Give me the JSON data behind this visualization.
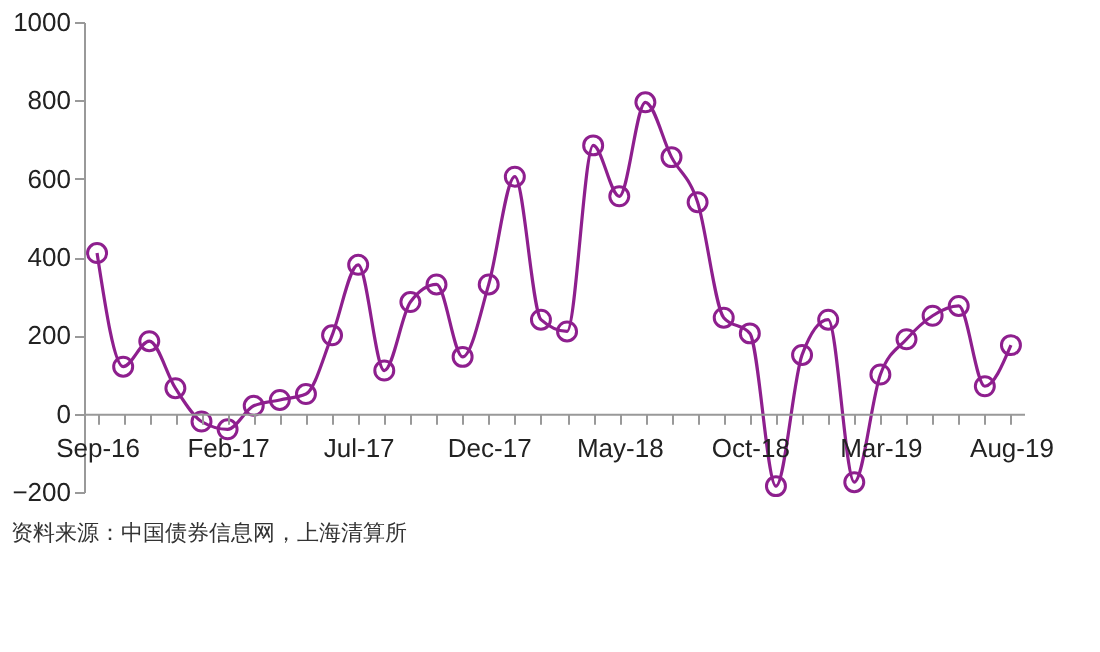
{
  "chart_data": {
    "type": "line",
    "categories": [
      "Sep-16",
      null,
      null,
      null,
      null,
      "Feb-17",
      null,
      null,
      null,
      null,
      "Jul-17",
      null,
      null,
      null,
      null,
      "Dec-17",
      null,
      null,
      null,
      null,
      "May-18",
      null,
      null,
      null,
      null,
      "Oct-18",
      null,
      null,
      null,
      null,
      "Mar-19",
      null,
      null,
      null,
      null,
      "Aug-19"
    ],
    "series": [
      {
        "color": "#8e1f8e",
        "values": [
          410,
          120,
          185,
          65,
          -20,
          -40,
          20,
          35,
          50,
          200,
          380,
          110,
          285,
          330,
          145,
          330,
          605,
          240,
          210,
          685,
          555,
          795,
          655,
          540,
          245,
          205,
          -185,
          150,
          240,
          -175,
          100,
          190,
          250,
          275,
          70,
          175
        ]
      }
    ],
    "ylim": [
      -200,
      1000
    ],
    "yticks": [
      -200,
      0,
      200,
      400,
      600,
      800,
      1000
    ],
    "grid": false,
    "marker": "circle",
    "line_style": "solid",
    "annotations": [
      "资料来源：中国债券信息网，上海清算所"
    ]
  }
}
